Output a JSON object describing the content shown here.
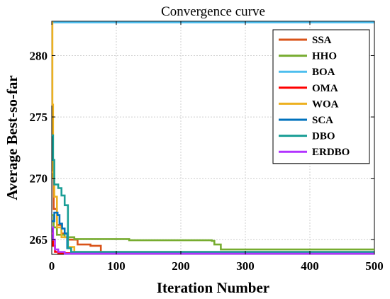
{
  "chart_data": {
    "type": "line",
    "title": "Convergence curve",
    "xlabel": "Iteration Number",
    "ylabel": "Average Best-so-far",
    "xlim": [
      0,
      500
    ],
    "ylim": [
      263.8,
      282.8
    ],
    "xticks": [
      0,
      100,
      200,
      300,
      400,
      500
    ],
    "yticks": [
      265,
      270,
      275,
      280
    ],
    "grid": true,
    "legend_position": "top-right",
    "series": [
      {
        "name": "SSA",
        "color": "#d95319",
        "points": [
          [
            0,
            270.5
          ],
          [
            3,
            267.5
          ],
          [
            8,
            266.2
          ],
          [
            15,
            265.5
          ],
          [
            25,
            265.0
          ],
          [
            40,
            264.6
          ],
          [
            60,
            264.5
          ],
          [
            75,
            264.5
          ],
          [
            76,
            263.9
          ],
          [
            500,
            263.9
          ]
        ]
      },
      {
        "name": "HHO",
        "color": "#77ac30",
        "points": [
          [
            0,
            267.0
          ],
          [
            3,
            266.0
          ],
          [
            8,
            265.4
          ],
          [
            20,
            265.2
          ],
          [
            35,
            265.05
          ],
          [
            120,
            264.95
          ],
          [
            248,
            264.9
          ],
          [
            252,
            264.6
          ],
          [
            262,
            264.2
          ],
          [
            500,
            264.2
          ]
        ]
      },
      {
        "name": "BOA",
        "color": "#4dbeee",
        "points": [
          [
            0,
            282.7
          ],
          [
            500,
            282.7
          ]
        ]
      },
      {
        "name": "OMA",
        "color": "#ff0000",
        "points": [
          [
            0,
            265.5
          ],
          [
            2,
            264.5
          ],
          [
            5,
            264.0
          ],
          [
            10,
            263.9
          ],
          [
            500,
            263.9
          ]
        ]
      },
      {
        "name": "WOA",
        "color": "#edb120",
        "points": [
          [
            0,
            282.7
          ],
          [
            1,
            276.0
          ],
          [
            2,
            270.0
          ],
          [
            4,
            268.5
          ],
          [
            8,
            266.0
          ],
          [
            15,
            265.2
          ],
          [
            25,
            264.4
          ],
          [
            35,
            264.0
          ],
          [
            500,
            264.0
          ]
        ]
      },
      {
        "name": "SCA",
        "color": "#0072bd",
        "points": [
          [
            0,
            266.5
          ],
          [
            4,
            267.2
          ],
          [
            9,
            267.0
          ],
          [
            12,
            266.3
          ],
          [
            16,
            265.9
          ],
          [
            20,
            265.5
          ],
          [
            24,
            264.3
          ],
          [
            30,
            263.9
          ],
          [
            500,
            263.9
          ]
        ]
      },
      {
        "name": "DBO",
        "color": "#1a9e96",
        "points": [
          [
            0,
            273.5
          ],
          [
            2,
            271.5
          ],
          [
            4,
            269.5
          ],
          [
            10,
            269.2
          ],
          [
            15,
            268.6
          ],
          [
            20,
            267.8
          ],
          [
            25,
            264.3
          ],
          [
            30,
            264.0
          ],
          [
            500,
            264.0
          ]
        ]
      },
      {
        "name": "ERDBO",
        "color": "#b233ff",
        "points": [
          [
            0,
            266.0
          ],
          [
            2,
            265.0
          ],
          [
            5,
            264.2
          ],
          [
            10,
            264.0
          ],
          [
            20,
            263.85
          ],
          [
            500,
            263.85
          ]
        ]
      }
    ]
  }
}
